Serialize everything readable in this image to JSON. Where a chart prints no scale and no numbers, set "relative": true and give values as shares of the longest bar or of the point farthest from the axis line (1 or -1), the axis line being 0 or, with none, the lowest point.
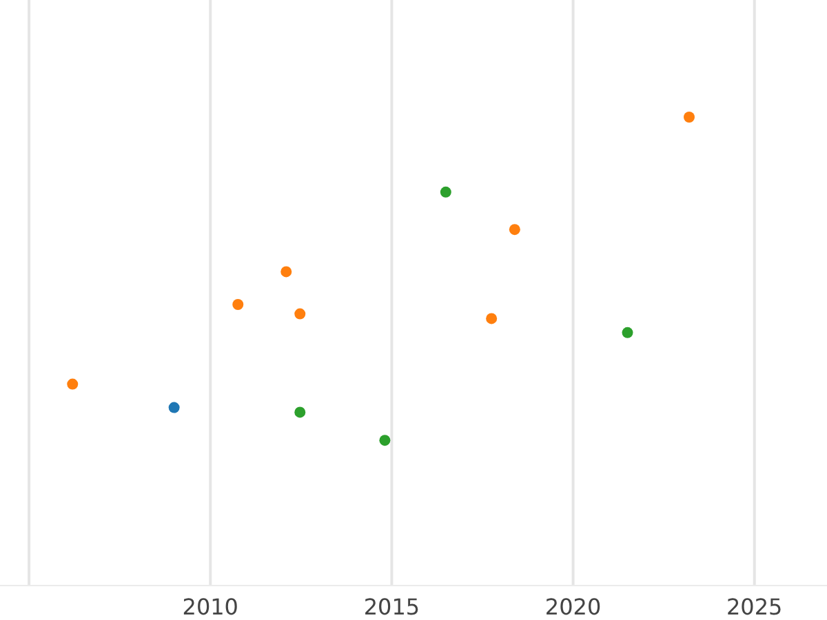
{
  "chart_data": {
    "type": "scatter",
    "grid": "x",
    "marker": "circle",
    "xlim": [
      2004.2,
      2027
    ],
    "xticks": [
      {
        "value": 2005,
        "label": null
      },
      2010,
      2015,
      2020,
      2025
    ],
    "relative": true,
    "series": [
      {
        "color": "#1f77b4",
        "x": [
          2009.0
        ],
        "values": [
          0.38
        ]
      },
      {
        "color": "#ff7f0e",
        "x": [
          2006.2,
          2010.76,
          2012.09,
          2012.47,
          2017.75,
          2018.39,
          2023.2
        ],
        "values": [
          0.43,
          0.6,
          0.67,
          0.58,
          0.57,
          0.76,
          1
        ]
      },
      {
        "color": "#2ca02c",
        "x": [
          2012.47,
          2014.81,
          2016.49,
          2021.5
        ],
        "values": [
          0.37,
          0.31,
          0.84,
          0.54
        ]
      }
    ]
  }
}
